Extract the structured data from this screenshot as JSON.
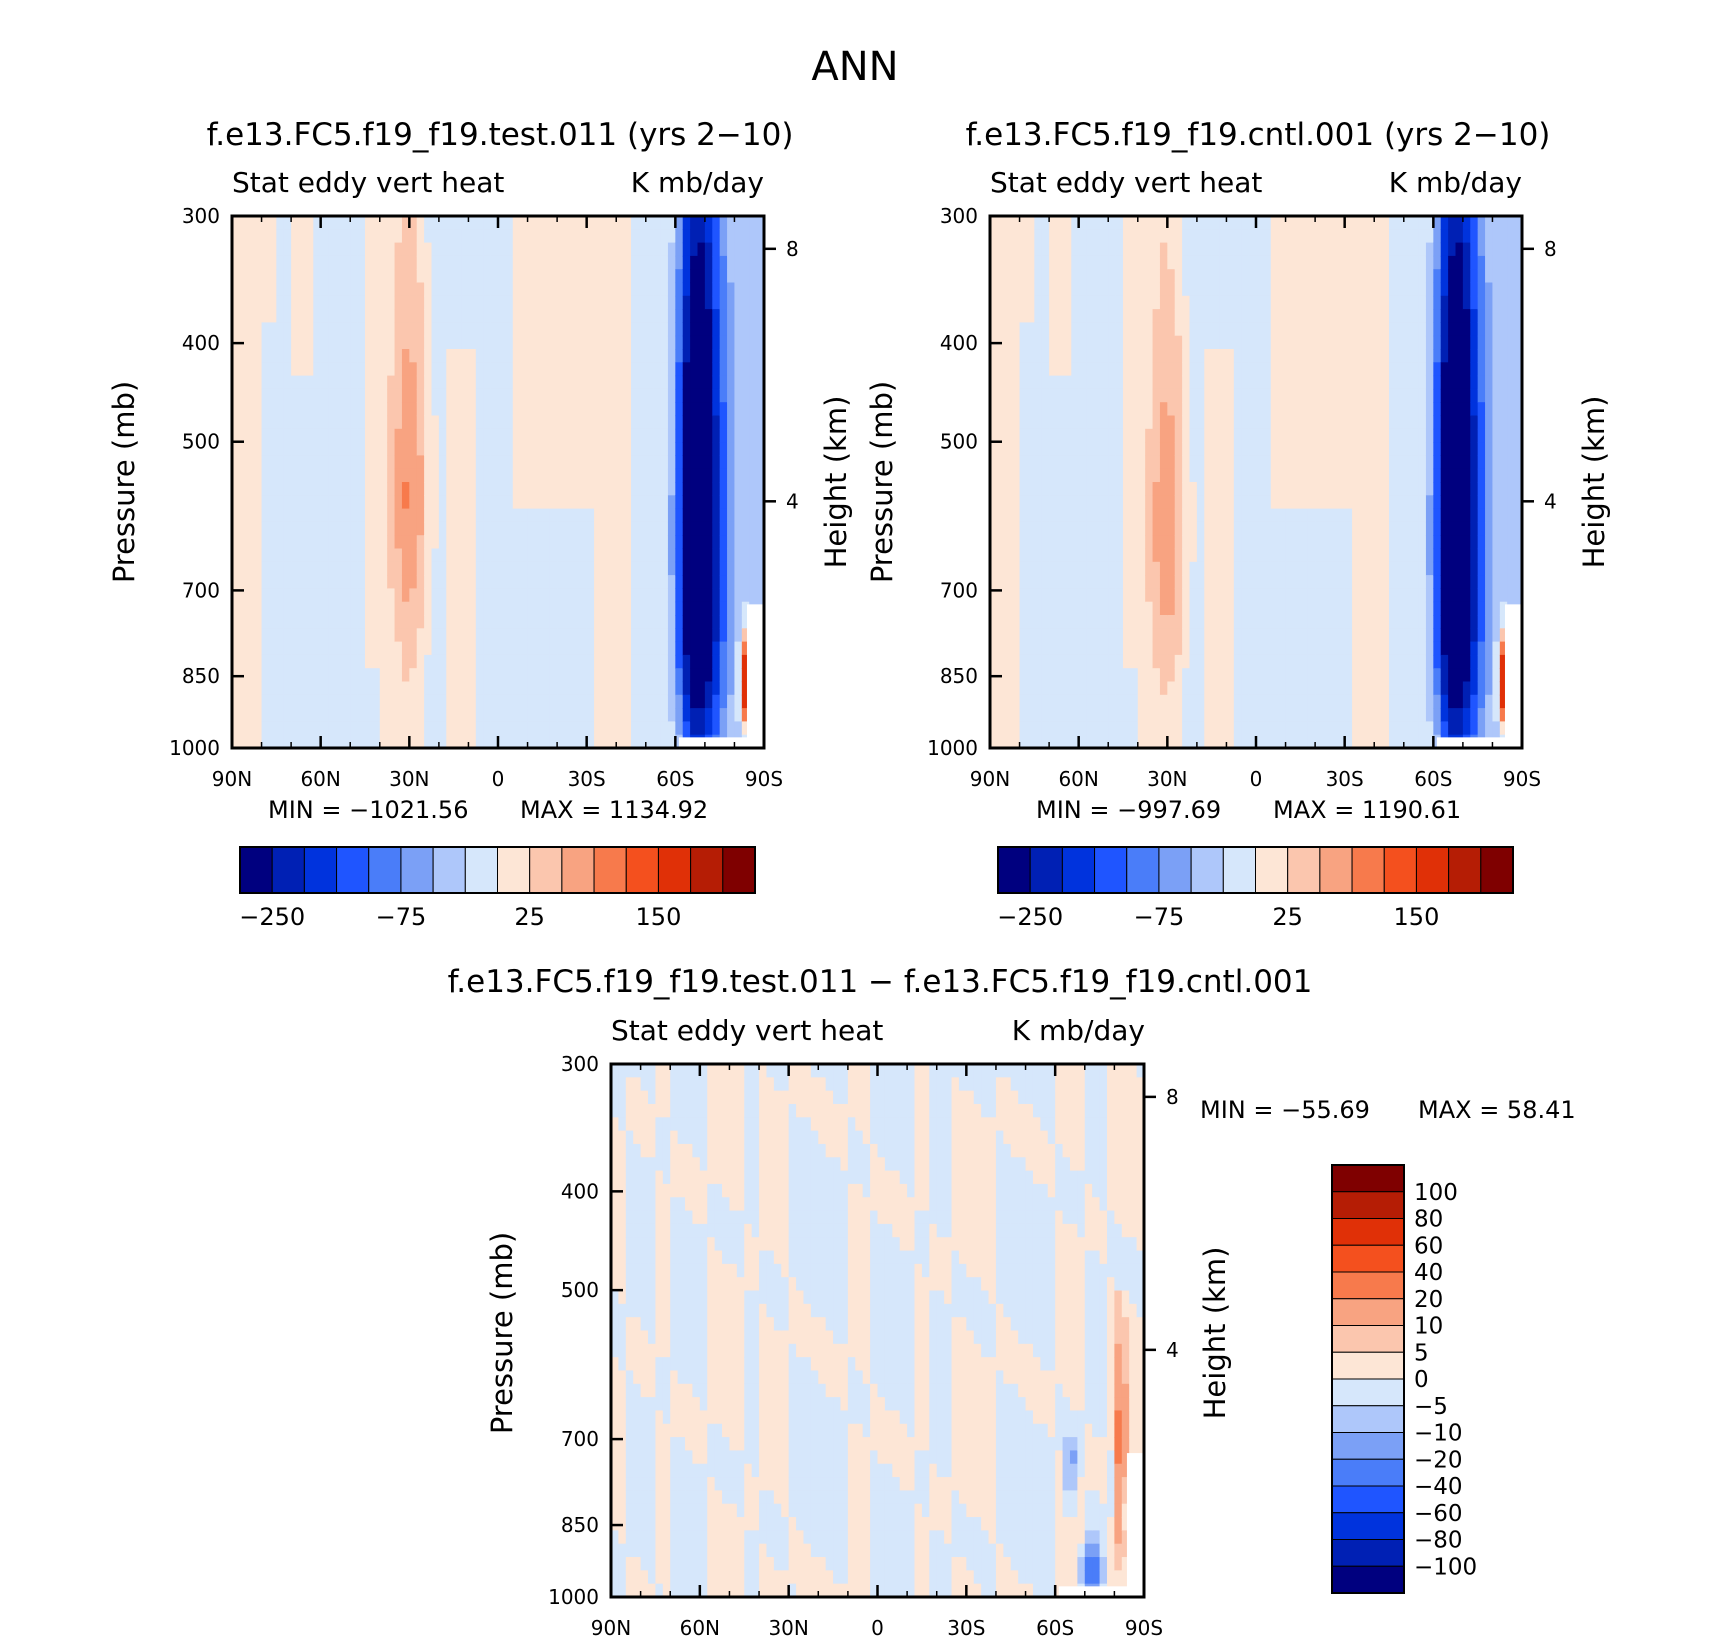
{
  "figure": {
    "title": "ANN"
  },
  "palette_main": [
    "#00007f",
    "#0020b4",
    "#0033dd",
    "#1f55ff",
    "#4a7df9",
    "#7ba0f6",
    "#aec7fa",
    "#d6e7fb",
    "#fde6d6",
    "#fbc6ae",
    "#f8a381",
    "#f77a4c",
    "#f4501e",
    "#e03007",
    "#b51d05",
    "#7f0000"
  ],
  "palette_diff": [
    "#00007f",
    "#0020b4",
    "#0033dd",
    "#1f55ff",
    "#4a7df9",
    "#7ba0f6",
    "#aec7fa",
    "#d6e7fb",
    "#fde6d6",
    "#fbc6ae",
    "#f8a381",
    "#f77a4c",
    "#f4501e",
    "#e03007",
    "#b51d05",
    "#7f0000"
  ],
  "chart_data": [
    {
      "id": "test",
      "type": "contour",
      "title": "f.e13.FC5.f19_f19.test.011 (yrs 2-10)",
      "left_string": "Stat eddy vert heat",
      "right_string": "K mb/day",
      "ylabel": "Pressure (mb)",
      "y2label": "Height (km)",
      "x_ticks": [
        "90N",
        "60N",
        "30N",
        "0",
        "30S",
        "60S",
        "90S"
      ],
      "y_ticks": [
        300,
        400,
        500,
        700,
        850,
        1000
      ],
      "y_range": [
        300,
        1000
      ],
      "y2_ticks": [
        8,
        4
      ],
      "min_label": "MIN = -1021.56",
      "max_label": "MAX = 1134.92",
      "colorbar_labels": [
        "-250",
        "-75",
        "25",
        "150"
      ],
      "features": [
        {
          "lat": 30,
          "p": 560,
          "value": 60,
          "width_deg": 6,
          "depth_mb": 200
        },
        {
          "lat": -68,
          "p": 620,
          "value": -500,
          "width_deg": 6,
          "depth_mb": 330
        },
        {
          "lat": -84,
          "p": 860,
          "value": 250,
          "width_deg": 2,
          "depth_mb": 80
        }
      ]
    },
    {
      "id": "cntl",
      "type": "contour",
      "title": "f.e13.FC5.f19_f19.cntl.001 (yrs 2-10)",
      "left_string": "Stat eddy vert heat",
      "right_string": "K mb/day",
      "ylabel": "Pressure (mb)",
      "y2label": "Height (km)",
      "x_ticks": [
        "90N",
        "60N",
        "30N",
        "0",
        "30S",
        "60S",
        "90S"
      ],
      "y_ticks": [
        300,
        400,
        500,
        700,
        850,
        1000
      ],
      "y_range": [
        300,
        1000
      ],
      "y2_ticks": [
        8,
        4
      ],
      "min_label": "MIN = -997.69",
      "max_label": "MAX = 1190.61",
      "colorbar_labels": [
        "-250",
        "-75",
        "25",
        "150"
      ],
      "features": [
        {
          "lat": 30,
          "p": 600,
          "value": 55,
          "width_deg": 6,
          "depth_mb": 200
        },
        {
          "lat": -68,
          "p": 620,
          "value": -500,
          "width_deg": 6,
          "depth_mb": 330
        },
        {
          "lat": -84,
          "p": 860,
          "value": 250,
          "width_deg": 2,
          "depth_mb": 80
        }
      ]
    },
    {
      "id": "diff",
      "type": "contour",
      "title": "f.e13.FC5.f19_f19.test.011 - f.e13.FC5.f19_f19.cntl.001",
      "left_string": "Stat eddy vert heat",
      "right_string": "K mb/day",
      "ylabel": "Pressure (mb)",
      "y2label": "Height (km)",
      "x_ticks": [
        "90N",
        "60N",
        "30N",
        "0",
        "30S",
        "60S",
        "90S"
      ],
      "y_ticks": [
        300,
        400,
        500,
        700,
        850,
        1000
      ],
      "y_range": [
        300,
        1000
      ],
      "y2_ticks": [
        8,
        4
      ],
      "min_label": "MIN = -55.69",
      "max_label": "MAX =  58.41",
      "colorbar_labels": [
        "100",
        "80",
        "60",
        "40",
        "20",
        "10",
        "5",
        "0",
        "-5",
        "-10",
        "-20",
        "-40",
        "-60",
        "-80",
        "-100"
      ],
      "features": [
        {
          "lat": -82,
          "p": 720,
          "value": 25,
          "width_deg": 2,
          "depth_mb": 150
        },
        {
          "lat": -65,
          "p": 760,
          "value": -15,
          "width_deg": 2,
          "depth_mb": 60
        },
        {
          "lat": -72,
          "p": 940,
          "value": -30,
          "width_deg": 3,
          "depth_mb": 50
        }
      ]
    }
  ]
}
